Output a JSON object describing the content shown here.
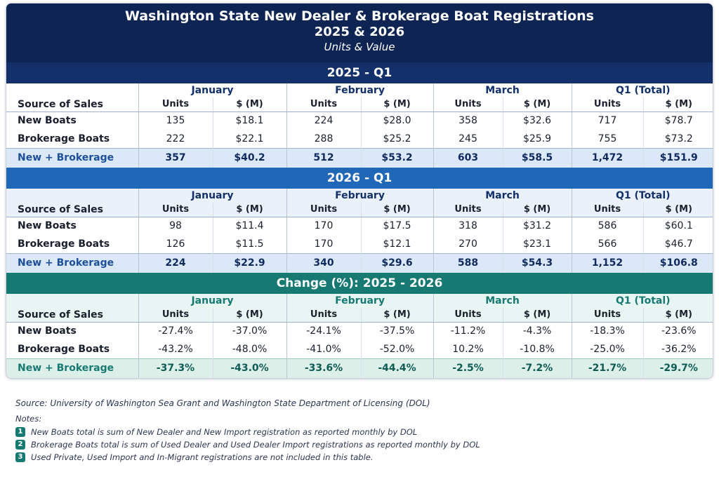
{
  "title": {
    "main": "Washington State New Dealer & Brokerage Boat Registrations",
    "years": "2025 & 2026",
    "units": "Units & Value"
  },
  "columns": {
    "source_label": "Source of Sales",
    "months": [
      "January",
      "February",
      "March",
      "Q1 (Total)"
    ],
    "units_label": "Units",
    "value_label": "$ (M)"
  },
  "sections": [
    {
      "heading": "2025 - Q1",
      "rows": [
        {
          "label": "New Boats",
          "cells": [
            "135",
            "$18.1",
            "224",
            "$28.0",
            "358",
            "$32.6",
            "717",
            "$78.7"
          ]
        },
        {
          "label": "Brokerage Boats",
          "cells": [
            "222",
            "$22.1",
            "288",
            "$25.2",
            "245",
            "$25.9",
            "755",
            "$73.2"
          ]
        }
      ],
      "total": {
        "label": "New + Brokerage",
        "cells": [
          "357",
          "$40.2",
          "512",
          "$53.2",
          "603",
          "$58.5",
          "1,472",
          "$151.9"
        ]
      }
    },
    {
      "heading": "2026 - Q1",
      "rows": [
        {
          "label": "New Boats",
          "cells": [
            "98",
            "$11.4",
            "170",
            "$17.5",
            "318",
            "$31.2",
            "586",
            "$60.1"
          ]
        },
        {
          "label": "Brokerage Boats",
          "cells": [
            "126",
            "$11.5",
            "170",
            "$12.1",
            "270",
            "$23.1",
            "566",
            "$46.7"
          ]
        }
      ],
      "total": {
        "label": "New + Brokerage",
        "cells": [
          "224",
          "$22.9",
          "340",
          "$29.6",
          "588",
          "$54.3",
          "1,152",
          "$106.8"
        ]
      }
    },
    {
      "heading": "Change (%): 2025 - 2026",
      "rows": [
        {
          "label": "New Boats",
          "cells": [
            "-27.4%",
            "-37.0%",
            "-24.1%",
            "-37.5%",
            "-11.2%",
            "-4.3%",
            "-18.3%",
            "-23.6%"
          ]
        },
        {
          "label": "Brokerage Boats",
          "cells": [
            "-43.2%",
            "-48.0%",
            "-41.0%",
            "-52.0%",
            "10.2%",
            "-10.8%",
            "-25.0%",
            "-36.2%"
          ]
        }
      ],
      "total": {
        "label": "New + Brokerage",
        "cells": [
          "-37.3%",
          "-43.0%",
          "-33.6%",
          "-44.4%",
          "-2.5%",
          "-7.2%",
          "-21.7%",
          "-29.7%"
        ]
      }
    }
  ],
  "footer": {
    "source": "Source: University of Washington Sea Grant and Washington State Department of Licensing (DOL)",
    "notes_label": "Notes:",
    "notes": [
      {
        "num": "1",
        "text": "New Boats total is sum of New Dealer and New Import registration as reported monthly by DOL"
      },
      {
        "num": "2",
        "text": "Brokerage Boats total is sum of Used Dealer and Used Dealer Import registrations as reported monthly by DOL"
      },
      {
        "num": "3",
        "text": "Used Private, Used Import and In-Migrant registrations are not included in this table."
      }
    ]
  },
  "colors": {
    "title_bg": "#0e2554",
    "section_2025": "#13306a",
    "section_2026": "#2167b8",
    "section_change": "#167a73"
  }
}
